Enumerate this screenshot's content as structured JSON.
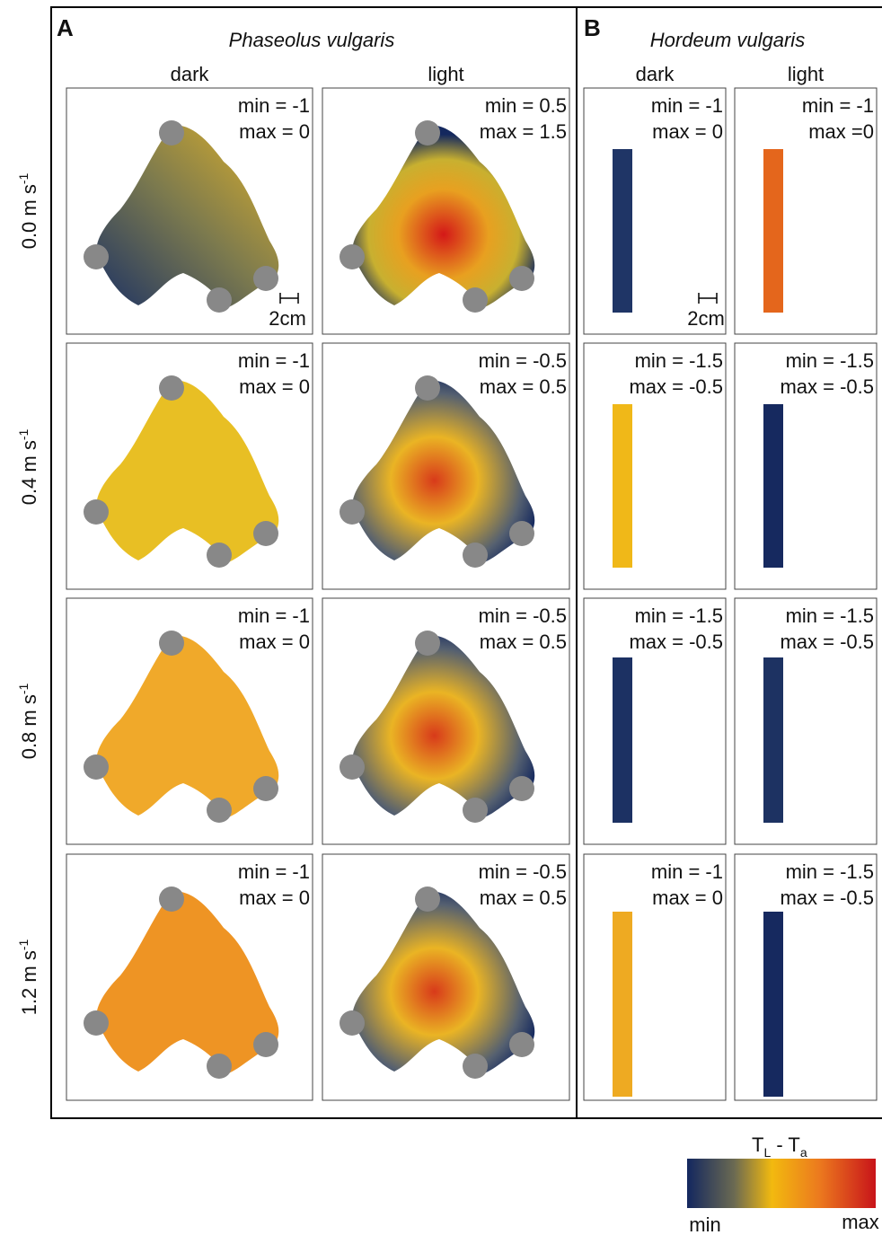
{
  "panels": [
    {
      "letter": "A",
      "title": "Phaseolus vulgaris",
      "columns": [
        "dark",
        "light"
      ],
      "cells": [
        [
          {
            "min": "min = -1",
            "max": "max = 0"
          },
          {
            "min": "min = 0.5",
            "max": "max = 1.5"
          }
        ],
        [
          {
            "min": "min = -1",
            "max": "max = 0"
          },
          {
            "min": "min = -0.5",
            "max": "max = 0.5"
          }
        ],
        [
          {
            "min": "min = -1",
            "max": "max = 0"
          },
          {
            "min": "min = -0.5",
            "max": "max = 0.5"
          }
        ],
        [
          {
            "min": "min = -1",
            "max": "max = 0"
          },
          {
            "min": "min = -0.5",
            "max": "max = 0.5"
          }
        ]
      ]
    },
    {
      "letter": "B",
      "title": "Hordeum vulgaris",
      "columns": [
        "dark",
        "light"
      ],
      "cells": [
        [
          {
            "min": "min = -1",
            "max": "max = 0"
          },
          {
            "min": "min = -1",
            "max": "max =0"
          }
        ],
        [
          {
            "min": "min = -1.5",
            "max": "max = -0.5"
          },
          {
            "min": "min = -1.5",
            "max": "max = -0.5"
          }
        ],
        [
          {
            "min": "min = -1.5",
            "max": "max = -0.5"
          },
          {
            "min": "min = -1.5",
            "max": "max = -0.5"
          }
        ],
        [
          {
            "min": "min = -1",
            "max": "max = 0"
          },
          {
            "min": "min = -1.5",
            "max": "max = -0.5"
          }
        ]
      ]
    }
  ],
  "row_labels": [
    {
      "text": "0.0 m s",
      "sup": "-1"
    },
    {
      "text": "0.4 m s",
      "sup": "-1"
    },
    {
      "text": "0.8 m s",
      "sup": "-1"
    },
    {
      "text": "1.2 m s",
      "sup": "-1"
    }
  ],
  "scale_bar": "2cm",
  "colorbar": {
    "title": [
      "T",
      "L",
      " - T",
      "a"
    ],
    "min": "min",
    "max": "max"
  }
}
